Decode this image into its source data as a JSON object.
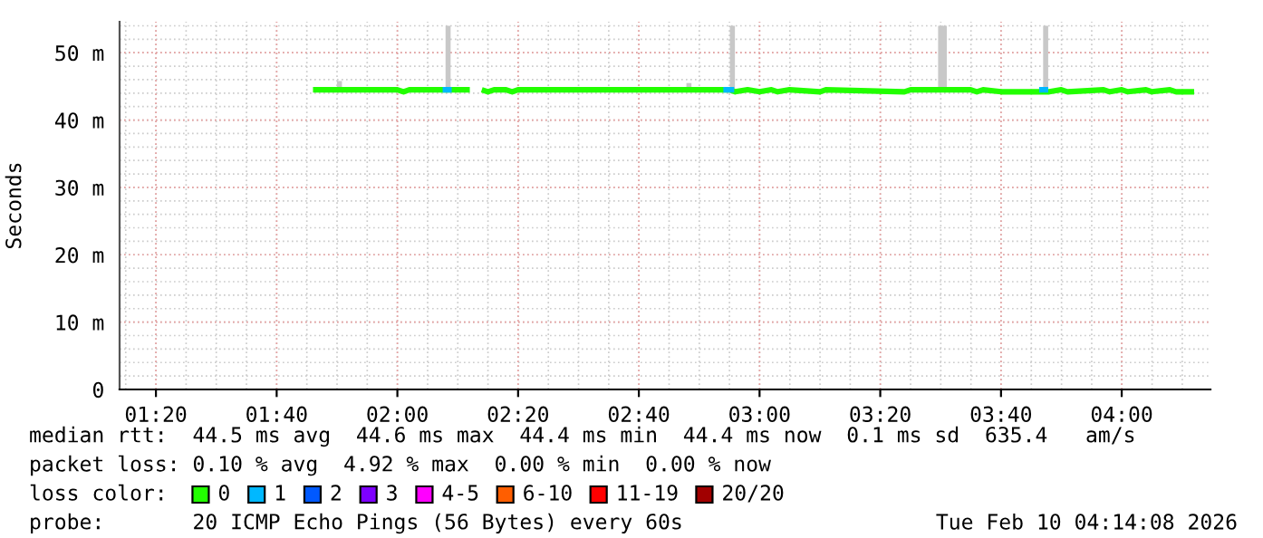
{
  "chart_data": {
    "type": "line",
    "ylabel": "Seconds",
    "legend_title": "loss color:",
    "legend": "bottom",
    "grid": true,
    "marker": "none",
    "line_style": "solid",
    "xlim": [
      1.233,
      4.245
    ],
    "xticks": [
      {
        "value": 1.3333,
        "label": "01:20"
      },
      {
        "value": 1.6667,
        "label": "01:40"
      },
      {
        "value": 2.0,
        "label": "02:00"
      },
      {
        "value": 2.3333,
        "label": "02:20"
      },
      {
        "value": 2.6667,
        "label": "02:40"
      },
      {
        "value": 3.0,
        "label": "03:00"
      },
      {
        "value": 3.3333,
        "label": "03:20"
      },
      {
        "value": 3.6667,
        "label": "03:40"
      },
      {
        "value": 4.0,
        "label": "04:00"
      }
    ],
    "ylim": [
      0,
      54.6
    ],
    "yticks": [
      0,
      {
        "value": 10,
        "label": "10 m"
      },
      {
        "value": 20,
        "label": "20 m"
      },
      {
        "value": 30,
        "label": "30 m"
      },
      {
        "value": 40,
        "label": "40 m"
      },
      {
        "value": 50,
        "label": "50 m"
      }
    ],
    "series": [
      {
        "type": "bar",
        "color": "#c8c8c8",
        "x": [
          1.84,
          2.14,
          2.805,
          2.925,
          3.5,
          3.51,
          3.79
        ],
        "base": [
          44.5,
          44.5,
          44.5,
          44.5,
          44.5,
          44.5,
          44.5
        ],
        "values": [
          1.3,
          9.5,
          1.0,
          9.5,
          9.5,
          9.5,
          9.5
        ]
      },
      {
        "name": "0",
        "color": "#22ff00",
        "x": [
          1.767,
          2.0,
          2.017,
          2.033,
          2.2,
          2.217,
          2.233,
          2.25,
          2.267,
          2.3,
          2.317,
          2.333,
          2.917,
          2.933,
          2.967,
          3.0,
          3.033,
          3.05,
          3.083,
          3.167,
          3.183,
          3.4,
          3.417,
          3.583,
          3.6,
          3.617,
          3.667,
          3.75,
          3.8,
          3.833,
          3.85,
          3.95,
          3.967,
          4.0,
          4.017,
          4.067,
          4.083,
          4.133,
          4.15,
          4.2
        ],
        "values": [
          44.5,
          44.5,
          44.2,
          44.5,
          44.5,
          null,
          44.5,
          44.2,
          44.5,
          44.5,
          44.2,
          44.5,
          44.5,
          44.2,
          44.5,
          44.2,
          44.5,
          44.2,
          44.5,
          44.2,
          44.5,
          44.2,
          44.5,
          44.5,
          44.2,
          44.5,
          44.2,
          44.2,
          44.2,
          44.5,
          44.2,
          44.5,
          44.2,
          44.5,
          44.2,
          44.5,
          44.2,
          44.5,
          44.2,
          44.2
        ]
      },
      {
        "name": "1",
        "color": "#00b8ff",
        "x": [
          2.125,
          2.15,
          2.5,
          2.9,
          2.93,
          3.3,
          3.772,
          3.797
        ],
        "values": [
          44.5,
          44.5,
          null,
          44.5,
          44.5,
          null,
          44.5,
          44.5
        ]
      },
      {
        "name": "2",
        "color": "#0059ff"
      },
      {
        "name": "3",
        "color": "#7e00ff"
      },
      {
        "name": "4-5",
        "color": "#ff00ff"
      },
      {
        "name": "6-10",
        "color": "#ff5e00"
      },
      {
        "name": "11-19",
        "color": "#ff0000"
      },
      {
        "name": "20/20",
        "color": "#a10000"
      }
    ],
    "annotations": [
      "median rtt:  44.5 ms avg  44.6 ms max  44.4 ms min  44.4 ms now  0.1 ms sd  635.4   am/s",
      "packet loss: 0.10 % avg  4.92 % max  0.00 % min  0.00 % now",
      "probe:       20 ICMP Echo Pings (56 Bytes) every 60s",
      "Tue Feb 10 04:14:08 2026"
    ]
  }
}
